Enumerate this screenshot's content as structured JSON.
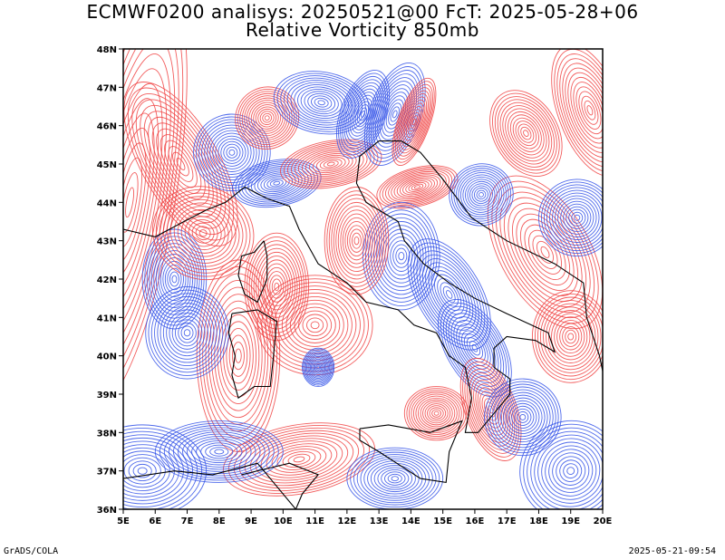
{
  "header": {
    "title_line1": "ECMWF0200 analisys: 20250521@00 FcT: 2025-05-28+06",
    "title_line2": "Relative Vorticity 850mb"
  },
  "map": {
    "lon_ticks": [
      "5E",
      "6E",
      "7E",
      "8E",
      "9E",
      "10E",
      "11E",
      "12E",
      "13E",
      "14E",
      "15E",
      "16E",
      "17E",
      "18E",
      "19E",
      "20E"
    ],
    "lat_ticks": [
      "48N",
      "47N",
      "46N",
      "45N",
      "44N",
      "43N",
      "42N",
      "41N",
      "40N",
      "39N",
      "38N",
      "37N",
      "36N"
    ],
    "colors": {
      "positive_contour": "#f04040",
      "negative_contour": "#3050e8",
      "coastline": "#000000",
      "frame": "#000000"
    },
    "icons": {
      "field": "contour-field"
    }
  },
  "footer": {
    "left": "GrADS/COLA",
    "right": "2025-05-21-09:54"
  }
}
